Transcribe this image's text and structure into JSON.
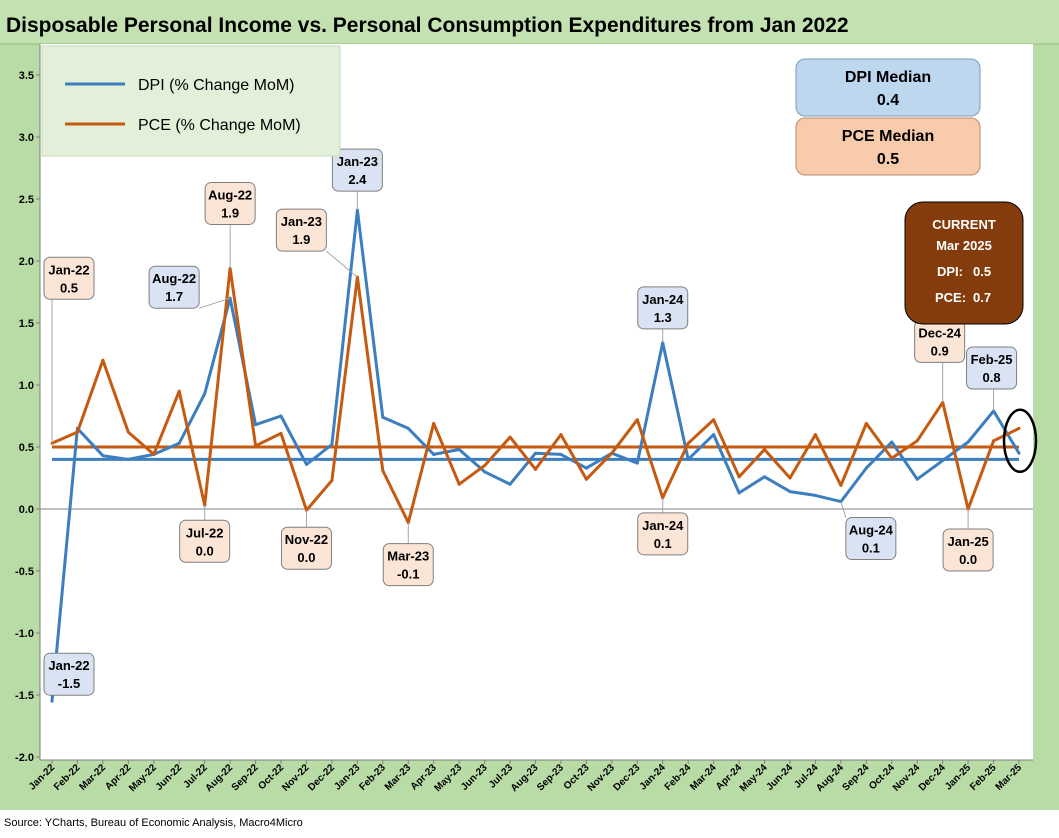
{
  "chart_data": {
    "type": "line",
    "title": "Disposable Personal Income vs. Personal Consumption Expenditures from Jan 2022",
    "source": "Source: YCharts, Bureau of Economic Analysis, Macro4Micro",
    "categories": [
      "Jan-22",
      "Feb-22",
      "Mar-22",
      "Apr-22",
      "May-22",
      "Jun-22",
      "Jul-22",
      "Aug-22",
      "Sep-22",
      "Oct-22",
      "Nov-22",
      "Dec-22",
      "Jan-23",
      "Feb-23",
      "Mar-23",
      "Apr-23",
      "May-23",
      "Jun-23",
      "Jul-23",
      "Aug-23",
      "Sep-23",
      "Oct-23",
      "Nov-23",
      "Dec-23",
      "Jan-24",
      "Feb-24",
      "Mar-24",
      "Apr-24",
      "May-24",
      "Jun-24",
      "Jul-24",
      "Aug-24",
      "Sep-24",
      "Oct-24",
      "Nov-24",
      "Dec-24",
      "Jan-25",
      "Feb-25",
      "Mar-25"
    ],
    "ylim": [
      -2.0,
      3.5
    ],
    "yticks": [
      "3.5",
      "3.0",
      "2.5",
      "2.0",
      "1.5",
      "1.0",
      "0.5",
      "0.0",
      "-0.5",
      "-1.0",
      "-1.5",
      "-2.0"
    ],
    "grid": false,
    "legend_position": "top-left",
    "series": [
      {
        "name": "DPI (% Change MoM)",
        "color": "#3d7ebf",
        "values": [
          -1.55,
          0.65,
          0.43,
          0.4,
          0.44,
          0.53,
          0.93,
          1.7,
          0.68,
          0.75,
          0.36,
          0.52,
          2.41,
          0.74,
          0.65,
          0.44,
          0.48,
          0.3,
          0.2,
          0.45,
          0.44,
          0.33,
          0.45,
          0.37,
          1.34,
          0.4,
          0.6,
          0.13,
          0.26,
          0.14,
          0.11,
          0.06,
          0.33,
          0.54,
          0.24,
          0.39,
          0.54,
          0.79,
          0.45
        ]
      },
      {
        "name": "PCE (% Change MoM)",
        "color": "#c55a11",
        "values": [
          0.53,
          0.62,
          1.2,
          0.62,
          0.44,
          0.95,
          0.03,
          1.94,
          0.51,
          0.61,
          -0.01,
          0.23,
          1.87,
          0.31,
          -0.11,
          0.69,
          0.2,
          0.35,
          0.58,
          0.32,
          0.6,
          0.24,
          0.45,
          0.72,
          0.09,
          0.53,
          0.72,
          0.26,
          0.48,
          0.25,
          0.6,
          0.19,
          0.69,
          0.41,
          0.55,
          0.86,
          0.0,
          0.55,
          0.65
        ]
      }
    ],
    "medians": {
      "dpi": {
        "value": 0.4,
        "label": "DPI Median",
        "value_text": "0.4",
        "color": "#3d7ebf"
      },
      "pce": {
        "value": 0.5,
        "label": "PCE Median",
        "value_text": "0.5",
        "color": "#c55a11"
      }
    },
    "current_box": {
      "title": "CURRENT",
      "period": "Mar 2025",
      "dpi_label": "DPI:",
      "dpi_value": "0.5",
      "pce_label": "PCE:",
      "pce_value": "0.7"
    },
    "annotations": [
      {
        "series": "dpi",
        "month": "Jan-22",
        "value": "-1.5",
        "point_index": 0
      },
      {
        "series": "pce",
        "month": "Jan-22",
        "value": "0.5",
        "point_index": 0
      },
      {
        "series": "dpi",
        "month": "Aug-22",
        "value": "1.7",
        "point_index": 7
      },
      {
        "series": "pce",
        "month": "Aug-22",
        "value": "1.9",
        "point_index": 7
      },
      {
        "series": "pce",
        "month": "Jul-22",
        "value": "0.0",
        "point_index": 6
      },
      {
        "series": "pce",
        "month": "Nov-22",
        "value": "0.0",
        "point_index": 10
      },
      {
        "series": "pce",
        "month": "Jan-23",
        "value": "1.9",
        "point_index": 12
      },
      {
        "series": "dpi",
        "month": "Jan-23",
        "value": "2.4",
        "point_index": 12
      },
      {
        "series": "pce",
        "month": "Mar-23",
        "value": "-0.1",
        "point_index": 14
      },
      {
        "series": "dpi",
        "month": "Jan-24",
        "value": "1.3",
        "point_index": 24
      },
      {
        "series": "pce",
        "month": "Jan-24",
        "value": "0.1",
        "point_index": 24
      },
      {
        "series": "dpi",
        "month": "Aug-24",
        "value": "0.1",
        "point_index": 31
      },
      {
        "series": "pce",
        "month": "Dec-24",
        "value": "0.9",
        "point_index": 35
      },
      {
        "series": "pce",
        "month": "Jan-25",
        "value": "0.0",
        "point_index": 36
      },
      {
        "series": "dpi",
        "month": "Feb-25",
        "value": "0.8",
        "point_index": 37
      }
    ],
    "highlight": {
      "month": "Mar-25",
      "shape": "ellipse"
    },
    "colors": {
      "frame_green": "#b9dca6",
      "title_bar": "#c3e1b1",
      "legend_bg": "#e2f0d9",
      "dpi_box_bg": "#bdd7ee",
      "pce_box_bg": "#f8cbad",
      "current_bg": "#843c0c"
    }
  }
}
